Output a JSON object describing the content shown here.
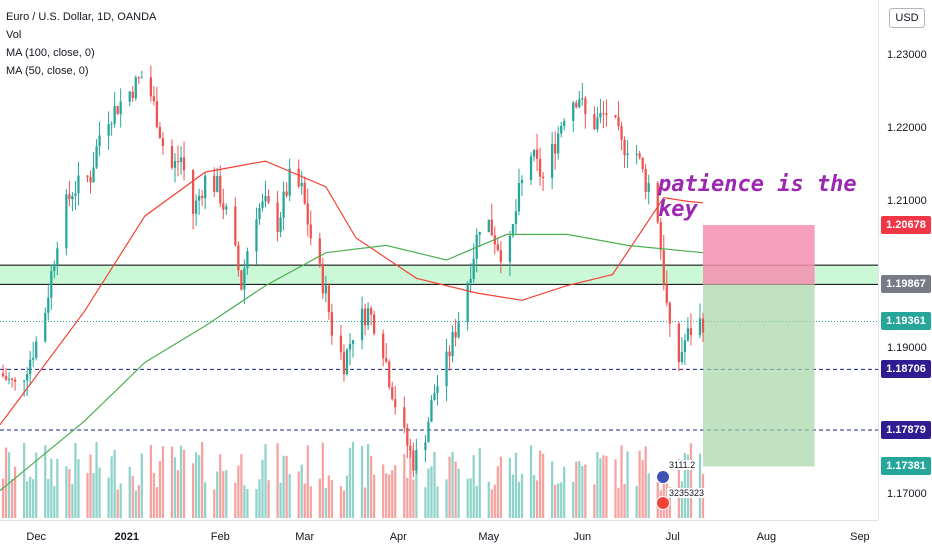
{
  "legend": {
    "symbol": "Euro / U.S. Dollar, 1D, OANDA",
    "volume": "Vol",
    "ma100": "MA (100, close, 0)",
    "ma50": "MA (50, close, 0)"
  },
  "currency": "USD",
  "annotation": "patience is the key",
  "event_labels": [
    "3111.2",
    "3235323"
  ],
  "colors": {
    "up": "#26a69a",
    "down": "#ef5350",
    "vol_up": "#8fd3cb",
    "vol_down": "#f5a3a1",
    "ma100": "#f44336",
    "ma50": "#4caf50",
    "annotation": "#9c27b0",
    "stop_zone": "#f48fb1",
    "target_zone": "#a5d6a7",
    "support_zone": "#b9f6ca"
  },
  "chart_data": {
    "type": "candlestick",
    "y_range": [
      1.1665,
      1.2375
    ],
    "y_ticks": [
      {
        "label": "1.23000",
        "value": 1.23
      },
      {
        "label": "1.22000",
        "value": 1.22
      },
      {
        "label": "1.21000",
        "value": 1.21
      },
      {
        "label": "1.19000",
        "value": 1.19
      },
      {
        "label": "1.17000",
        "value": 1.17
      }
    ],
    "x_ticks": [
      {
        "label": "Dec",
        "day": 4,
        "bold": false
      },
      {
        "label": "2021",
        "day": 34,
        "bold": true
      },
      {
        "label": "Feb",
        "day": 65,
        "bold": false
      },
      {
        "label": "Mar",
        "day": 93,
        "bold": false
      },
      {
        "label": "Apr",
        "day": 124,
        "bold": false
      },
      {
        "label": "May",
        "day": 154,
        "bold": false
      },
      {
        "label": "Jun",
        "day": 185,
        "bold": false
      },
      {
        "label": "Jul",
        "day": 215,
        "bold": false
      },
      {
        "label": "Aug",
        "day": 246,
        "bold": false
      },
      {
        "label": "Sep",
        "day": 277,
        "bold": false
      }
    ],
    "x_day_range": [
      -8,
      283
    ],
    "anchors": [
      [
        -8,
        1.1865
      ],
      [
        -2,
        1.1845
      ],
      [
        6,
        1.1928
      ],
      [
        12,
        1.2075
      ],
      [
        16,
        1.2115
      ],
      [
        22,
        1.2135
      ],
      [
        26,
        1.221
      ],
      [
        30,
        1.2225
      ],
      [
        34,
        1.2245
      ],
      [
        40,
        1.2275
      ],
      [
        44,
        1.2215
      ],
      [
        48,
        1.214
      ],
      [
        52,
        1.216
      ],
      [
        56,
        1.2085
      ],
      [
        60,
        1.213
      ],
      [
        64,
        1.212
      ],
      [
        68,
        1.207
      ],
      [
        72,
        1.1985
      ],
      [
        76,
        1.2085
      ],
      [
        80,
        1.2095
      ],
      [
        84,
        1.207
      ],
      [
        88,
        1.213
      ],
      [
        92,
        1.2115
      ],
      [
        96,
        1.203
      ],
      [
        100,
        1.1975
      ],
      [
        102,
        1.1925
      ],
      [
        106,
        1.188
      ],
      [
        110,
        1.1935
      ],
      [
        114,
        1.195
      ],
      [
        118,
        1.192
      ],
      [
        121,
        1.186
      ],
      [
        125,
        1.179
      ],
      [
        129,
        1.1745
      ],
      [
        132,
        1.1765
      ],
      [
        136,
        1.184
      ],
      [
        140,
        1.188
      ],
      [
        144,
        1.194
      ],
      [
        148,
        1.201
      ],
      [
        152,
        1.209
      ],
      [
        156,
        1.205
      ],
      [
        160,
        1.2015
      ],
      [
        164,
        1.211
      ],
      [
        168,
        1.2165
      ],
      [
        172,
        1.213
      ],
      [
        176,
        1.218
      ],
      [
        180,
        1.2235
      ],
      [
        184,
        1.2245
      ],
      [
        187,
        1.22
      ],
      [
        190,
        1.221
      ],
      [
        194,
        1.2225
      ],
      [
        198,
        1.2175
      ],
      [
        202,
        1.218
      ],
      [
        206,
        1.2125
      ],
      [
        209,
        1.212
      ],
      [
        212,
        1.1995
      ],
      [
        214,
        1.1918
      ],
      [
        216,
        1.187
      ],
      [
        219,
        1.191
      ],
      [
        222,
        1.1932
      ],
      [
        225,
        1.1936
      ]
    ],
    "ma50": [
      [
        -8,
        1.1705
      ],
      [
        20,
        1.18
      ],
      [
        40,
        1.188
      ],
      [
        60,
        1.193
      ],
      [
        80,
        1.1985
      ],
      [
        100,
        1.203
      ],
      [
        120,
        1.204
      ],
      [
        140,
        1.202
      ],
      [
        160,
        1.2055
      ],
      [
        180,
        1.2055
      ],
      [
        200,
        1.204
      ],
      [
        225,
        1.203
      ]
    ],
    "ma100": [
      [
        -8,
        1.1795
      ],
      [
        20,
        1.195
      ],
      [
        40,
        1.208
      ],
      [
        60,
        1.214
      ],
      [
        80,
        1.2155
      ],
      [
        100,
        1.212
      ],
      [
        110,
        1.205
      ],
      [
        130,
        1.1995
      ],
      [
        150,
        1.1975
      ],
      [
        165,
        1.1965
      ],
      [
        180,
        1.1985
      ],
      [
        195,
        1.2
      ],
      [
        212,
        1.2105
      ],
      [
        220,
        1.21
      ],
      [
        225,
        1.2098
      ]
    ],
    "horizontal_levels": [
      {
        "price": 1.20678,
        "label": "1.20678",
        "label_bg": "#f23645",
        "line": "none"
      },
      {
        "price": 1.2013,
        "label": "",
        "line": "solid-black"
      },
      {
        "price": 1.19867,
        "label": "1.19867",
        "label_bg": "#787b86",
        "line": "solid-black"
      },
      {
        "price": 1.19361,
        "label": "1.19361",
        "label_bg": "#26a69a",
        "line": "dotted-teal"
      },
      {
        "price": 1.18706,
        "label": "1.18706",
        "label_bg": "#311b92",
        "line": "dashed-navy"
      },
      {
        "price": 1.17879,
        "label": "1.17879",
        "label_bg": "#311b92",
        "line": "dashed-navy"
      },
      {
        "price": 1.17381,
        "label": "1.17381",
        "label_bg": "#26a69a",
        "line": "none"
      }
    ],
    "support_zone": {
      "from_price": 1.19867,
      "to_price": 1.2013,
      "day_start": -8,
      "day_end": 283
    },
    "position": {
      "day_start": 225,
      "day_end": 262,
      "entry": 1.19867,
      "stop": 1.20678,
      "target": 1.17381
    }
  }
}
